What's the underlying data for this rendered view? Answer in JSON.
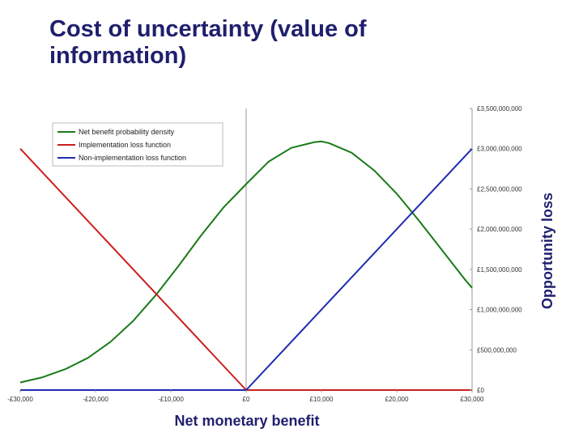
{
  "slide": {
    "title": "Cost of uncertainty (value of information)"
  },
  "chart_data": {
    "type": "line",
    "title": "Cost of uncertainty (value of information)",
    "xlabel": "Net monetary benefit",
    "ylabel_right": "Opportunity loss",
    "x_ticks": [
      "-£30,000",
      "-£20,000",
      "-£10,000",
      "£0",
      "£10,000",
      "£20,000",
      "£30,000"
    ],
    "y_ticks": [
      "£0",
      "£500,000,000",
      "£1,000,000,000",
      "£1,500,000,000",
      "£2,000,000,000",
      "£2,500,000,000",
      "£3,000,000,000",
      "£3,500,000,000"
    ],
    "xlim": [
      -30000,
      30000
    ],
    "ylim": [
      0,
      3500000000
    ],
    "legend_position": "top-left",
    "gridlines": false,
    "series": [
      {
        "name": "Net benefit probability density",
        "color": "#1a7a1a",
        "x": [
          -30000,
          -27000,
          -24000,
          -21000,
          -18000,
          -15000,
          -12000,
          -9000,
          -6000,
          -3000,
          0,
          3000,
          6000,
          9000,
          10000,
          11000,
          14000,
          17000,
          20000,
          23000,
          26000,
          29000,
          30000
        ],
        "y": [
          95000000,
          160000000,
          260000000,
          400000000,
          600000000,
          860000000,
          1180000000,
          1540000000,
          1920000000,
          2270000000,
          2560000000,
          2840000000,
          3010000000,
          3080000000,
          3090000000,
          3070000000,
          2950000000,
          2730000000,
          2440000000,
          2100000000,
          1740000000,
          1380000000,
          1270000000
        ]
      },
      {
        "name": "Implementation loss function",
        "color": "#cc1f1f",
        "x": [
          -30000,
          0,
          30000
        ],
        "y": [
          3000000000,
          0,
          0
        ]
      },
      {
        "name": "Non-implementation loss function",
        "color": "#1f2bb0",
        "x": [
          -30000,
          0,
          30000
        ],
        "y": [
          0,
          0,
          3000000000
        ]
      }
    ]
  }
}
